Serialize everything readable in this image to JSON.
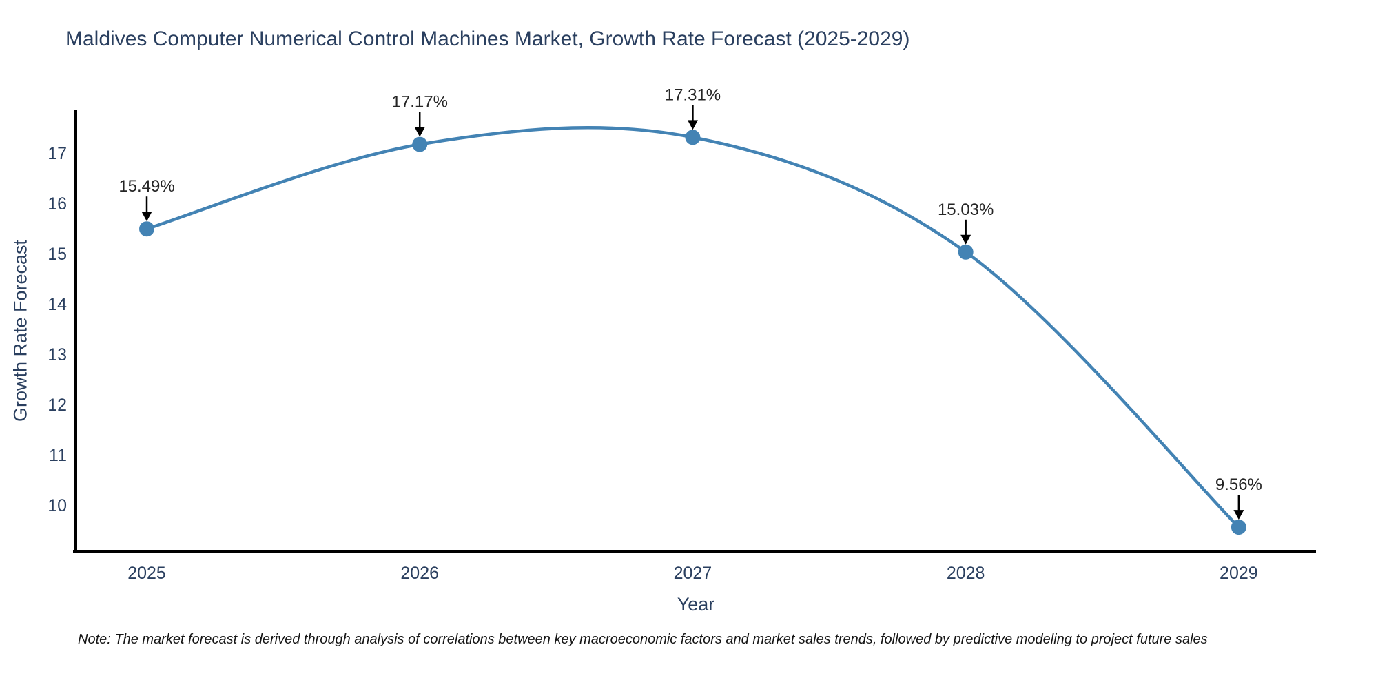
{
  "title": "Maldives Computer Numerical Control Machines Market, Growth Rate Forecast (2025-2029)",
  "note": "Note: The market forecast is derived through analysis of correlations between key macroeconomic factors and market sales trends, followed by predictive modeling to project future sales",
  "chart_data": {
    "type": "line",
    "title": "Maldives Computer Numerical Control Machines Market, Growth Rate Forecast (2025-2029)",
    "xlabel": "Year",
    "ylabel": "Growth Rate Forecast",
    "x": [
      2025,
      2026,
      2027,
      2028,
      2029
    ],
    "values": [
      15.49,
      17.17,
      17.31,
      15.03,
      9.56
    ],
    "point_labels": [
      "15.49%",
      "17.17%",
      "17.31%",
      "15.03%",
      "9.56%"
    ],
    "yticks": [
      10,
      11,
      12,
      13,
      14,
      15,
      16,
      17
    ],
    "xlim": [
      2024.74,
      2029.283
    ],
    "ylim": [
      9.082,
      17.849
    ],
    "grid": false,
    "legend": false,
    "smooth": true,
    "line_color": "#4383b4",
    "marker_color": "#4383b4",
    "axis_color": "#000000",
    "tick_color": "#2a3f5f",
    "annotation_text_color": "#252525",
    "annotation_arrow_color": "#000000"
  }
}
